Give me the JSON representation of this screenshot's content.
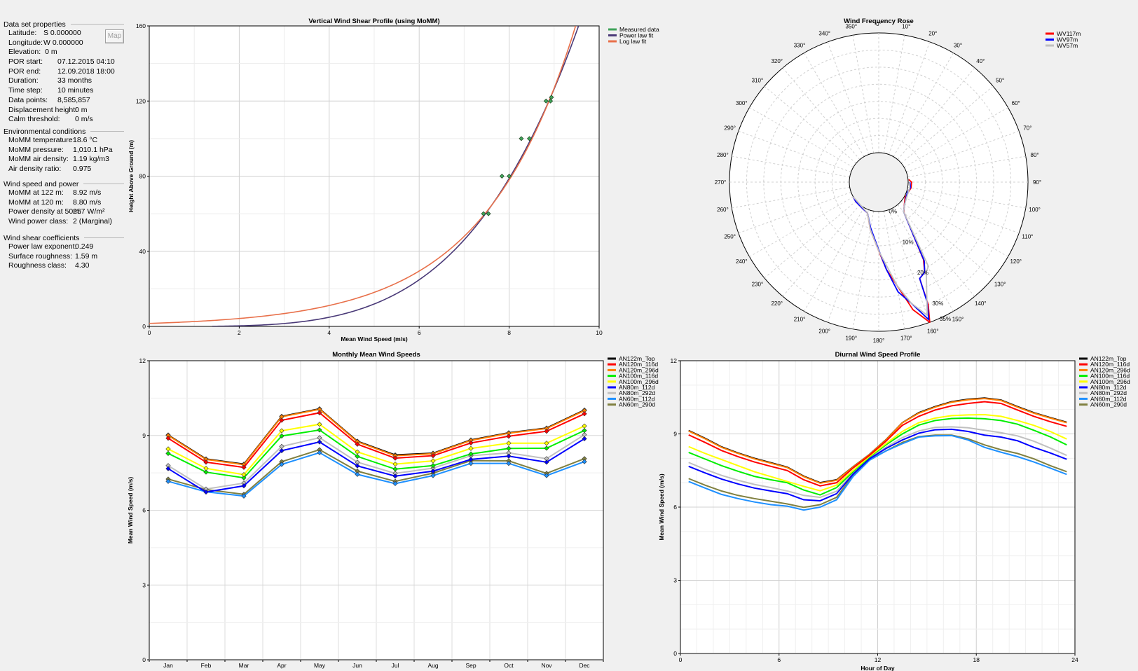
{
  "panel": {
    "map_button": "Map",
    "sections": [
      {
        "title": "Data set properties",
        "rows": [
          {
            "label": "Latitude:",
            "value": "S 0.000000"
          },
          {
            "label": "Longitude:",
            "value": "W 0.000000"
          },
          {
            "label": "Elevation:",
            "value": "0 m"
          },
          {
            "label": "POR start:",
            "value": "07.12.2015 04:10"
          },
          {
            "label": "POR end:",
            "value": "12.09.2018 18:00"
          },
          {
            "label": "Duration:",
            "value": "33 months"
          },
          {
            "label": "Time step:",
            "value": "10 minutes"
          },
          {
            "label": "Data points:",
            "value": "8,585,857"
          },
          {
            "label": "Displacement height:",
            "value": "0 m"
          },
          {
            "label": "Calm threshold:",
            "value": "0 m/s"
          }
        ]
      },
      {
        "title": "Environmental conditions",
        "rows": [
          {
            "label": "MoMM temperature:",
            "value": "18.6 °C"
          },
          {
            "label": "MoMM pressure:",
            "value": "1,010.1 hPa"
          },
          {
            "label": "MoMM air density:",
            "value": "1.19 kg/m3"
          },
          {
            "label": "Air density ratio:",
            "value": "0.975"
          }
        ]
      },
      {
        "title": "Wind speed and power",
        "rows": [
          {
            "label": "MoMM at 122 m:",
            "value": "8.92 m/s"
          },
          {
            "label": "MoMM at 120 m:",
            "value": "8.80 m/s"
          },
          {
            "label": "Power density at 50m:",
            "value": "257 W/m²"
          },
          {
            "label": "Wind power class:",
            "value": "2  (Marginal)"
          }
        ]
      },
      {
        "title": "Wind shear coefficients",
        "rows": [
          {
            "label": "Power law exponent:",
            "value": "0.249"
          },
          {
            "label": "Surface roughness:",
            "value": "1.59 m"
          },
          {
            "label": "Roughness class:",
            "value": "4.30"
          }
        ]
      }
    ]
  },
  "chart_data": [
    {
      "id": "shear",
      "type": "scatter",
      "title": "Vertical Wind Shear Profile (using MoMM)",
      "xlabel": "Mean Wind Speed (m/s)",
      "ylabel": "Height Above Ground (m)",
      "xlim": [
        0,
        10
      ],
      "ylim": [
        0,
        160
      ],
      "xticks": [
        "0",
        "2",
        "4",
        "6",
        "8",
        "10"
      ],
      "yticks": [
        "0",
        "40",
        "80",
        "120",
        "160"
      ],
      "legend_position": "top-right",
      "legend": [
        {
          "name": "Measured data",
          "color": "#3fa35a"
        },
        {
          "name": "Power law fit",
          "color": "#4a3a78"
        },
        {
          "name": "Log law fit",
          "color": "#e8704a"
        }
      ],
      "measured": [
        [
          7.43,
          60
        ],
        [
          7.54,
          60
        ],
        [
          7.84,
          80
        ],
        [
          8.0,
          80
        ],
        [
          8.27,
          100
        ],
        [
          8.45,
          100
        ],
        [
          8.82,
          120
        ],
        [
          8.92,
          120
        ],
        [
          8.94,
          122
        ]
      ],
      "power_fit": {
        "exponent": 0.249,
        "ref_height": 122,
        "ref_speed": 8.92
      },
      "log_fit": {
        "roughness": 1.59,
        "ref_height": 122,
        "ref_speed": 8.92
      }
    },
    {
      "id": "rose",
      "type": "line",
      "title": "Wind Frequency Rose",
      "radial_max": 35,
      "direction_labels": [
        "0°",
        "10°",
        "20°",
        "30°",
        "40°",
        "50°",
        "60°",
        "70°",
        "80°",
        "90°",
        "100°",
        "110°",
        "120°",
        "130°",
        "140°",
        "150°",
        "160°",
        "170°",
        "180°",
        "190°",
        "200°",
        "210°",
        "220°",
        "230°",
        "240°",
        "250°",
        "260°",
        "270°",
        "280°",
        "290°",
        "300°",
        "310°",
        "320°",
        "330°",
        "340°",
        "350°"
      ],
      "radial_labels": [
        {
          "value": 0,
          "text": "0%"
        },
        {
          "value": 10,
          "text": "10%"
        },
        {
          "value": 20,
          "text": "20%"
        },
        {
          "value": 30,
          "text": "30%"
        },
        {
          "value": 35,
          "text": "35%"
        }
      ],
      "legend_position": "top-right",
      "series": [
        {
          "name": "WV117m",
          "color": "#ff0000",
          "points": [
            [
              85,
              0.2
            ],
            [
              90,
              1
            ],
            [
              100,
              1
            ],
            [
              110,
              0.5
            ],
            [
              120,
              0.3
            ],
            [
              130,
              1.2
            ],
            [
              140,
              2.8
            ],
            [
              150,
              17.5
            ],
            [
              153,
              21
            ],
            [
              157,
              22
            ],
            [
              158,
              30
            ],
            [
              160,
              35
            ],
            [
              165,
              30
            ],
            [
              170,
              22
            ],
            [
              175,
              17
            ],
            [
              180,
              11.5
            ],
            [
              190,
              5.5
            ],
            [
              200,
              1
            ],
            [
              210,
              0.5
            ],
            [
              230,
              0.2
            ],
            [
              240,
              0
            ]
          ]
        },
        {
          "name": "WV97m",
          "color": "#0000ff",
          "points": [
            [
              90,
              0.5
            ],
            [
              100,
              0.8
            ],
            [
              110,
              0.3
            ],
            [
              130,
              1.3
            ],
            [
              140,
              2.7
            ],
            [
              150,
              18
            ],
            [
              153,
              21
            ],
            [
              157,
              22
            ],
            [
              158,
              29
            ],
            [
              160,
              34.2
            ],
            [
              165,
              28
            ],
            [
              170,
              24
            ],
            [
              175,
              17
            ],
            [
              180,
              11.2
            ],
            [
              190,
              5
            ],
            [
              200,
              1
            ],
            [
              210,
              0.5
            ],
            [
              230,
              0.2
            ],
            [
              240,
              0
            ]
          ]
        },
        {
          "name": "WV57m",
          "color": "#c0c0c0",
          "points": [
            [
              90,
              0.3
            ],
            [
              100,
              0.6
            ],
            [
              130,
              1.3
            ],
            [
              140,
              2.7
            ],
            [
              149.5,
              20
            ],
            [
              152,
              21
            ],
            [
              160,
              32.8
            ],
            [
              165,
              28
            ],
            [
              170,
              22
            ],
            [
              180,
              11.5
            ],
            [
              190,
              5.5
            ],
            [
              200,
              1
            ],
            [
              240,
              0
            ]
          ]
        }
      ]
    },
    {
      "id": "monthly",
      "type": "line",
      "title": "Monthly Mean Wind Speeds",
      "xlabel": "",
      "ylabel": "Mean Wind Speed (m/s)",
      "ylim": [
        0,
        12
      ],
      "yticks": [
        "0",
        "3",
        "6",
        "9",
        "12"
      ],
      "categories": [
        "Jan",
        "Feb",
        "Mar",
        "Apr",
        "May",
        "Jun",
        "Jul",
        "Aug",
        "Sep",
        "Oct",
        "Nov",
        "Dec"
      ],
      "legend_position": "top-right",
      "series": [
        {
          "name": "AN122m_Top",
          "color": "#000000",
          "values": [
            9.02,
            8.06,
            7.85,
            9.77,
            10.07,
            8.77,
            8.22,
            8.29,
            8.82,
            9.11,
            9.3,
            10.02
          ]
        },
        {
          "name": "AN120m_116d",
          "color": "#ff0000",
          "values": [
            8.89,
            7.93,
            7.72,
            9.61,
            9.91,
            8.65,
            8.09,
            8.19,
            8.7,
            8.97,
            9.17,
            9.87
          ]
        },
        {
          "name": "AN120m_296d",
          "color": "#ff8000",
          "values": [
            9.0,
            8.04,
            7.83,
            9.75,
            10.05,
            8.75,
            8.19,
            8.27,
            8.8,
            9.09,
            9.28,
            10.0
          ]
        },
        {
          "name": "AN100m_116d",
          "color": "#00ee00",
          "values": [
            8.28,
            7.53,
            7.3,
            8.98,
            9.22,
            8.16,
            7.65,
            7.79,
            8.26,
            8.48,
            8.49,
            9.2
          ]
        },
        {
          "name": "AN100m_296d",
          "color": "#ffff00",
          "values": [
            8.46,
            7.68,
            7.43,
            9.19,
            9.45,
            8.34,
            7.85,
            7.98,
            8.48,
            8.69,
            8.69,
            9.38
          ]
        },
        {
          "name": "AN80m_112d",
          "color": "#0000ff",
          "values": [
            7.67,
            6.73,
            6.98,
            8.39,
            8.74,
            7.78,
            7.37,
            7.57,
            8.04,
            8.17,
            7.93,
            8.87
          ]
        },
        {
          "name": "AN80m_292d",
          "color": "#c0c0c0",
          "values": [
            7.79,
            6.85,
            7.09,
            8.56,
            8.91,
            7.93,
            7.48,
            7.69,
            8.19,
            8.3,
            8.07,
            9.03
          ]
        },
        {
          "name": "AN60m_112d",
          "color": "#1e90ff",
          "values": [
            7.16,
            6.74,
            6.57,
            7.84,
            8.31,
            7.44,
            7.07,
            7.39,
            7.88,
            7.88,
            7.39,
            7.95
          ]
        },
        {
          "name": "AN60m_290d",
          "color": "#808040",
          "values": [
            7.25,
            6.83,
            6.64,
            7.95,
            8.43,
            7.57,
            7.16,
            7.49,
            7.99,
            7.98,
            7.48,
            8.07
          ]
        }
      ]
    },
    {
      "id": "diurnal",
      "type": "line",
      "title": "Diurnal Wind Speed Profile",
      "xlabel": "Hour of Day",
      "ylabel": "Mean Wind Speed (m/s)",
      "xlim": [
        0,
        24
      ],
      "ylim": [
        0,
        12
      ],
      "xticks": [
        "0",
        "6",
        "12",
        "18",
        "24"
      ],
      "yticks": [
        "0",
        "3",
        "6",
        "9",
        "12"
      ],
      "x": [
        0.5,
        1.5,
        2.5,
        3.5,
        4.5,
        5.5,
        6.5,
        7.5,
        8.5,
        9.5,
        10.5,
        11.5,
        12.5,
        13.5,
        14.5,
        15.5,
        16.5,
        17.5,
        18.5,
        19.5,
        20.5,
        21.5,
        22.5,
        23.5
      ],
      "legend_position": "top-right",
      "series": [
        {
          "name": "AN122m_Top",
          "color": "#000000",
          "values": [
            9.14,
            8.82,
            8.47,
            8.22,
            8.0,
            7.82,
            7.64,
            7.27,
            7.0,
            7.12,
            7.65,
            8.16,
            8.76,
            9.46,
            9.87,
            10.12,
            10.32,
            10.42,
            10.47,
            10.39,
            10.12,
            9.87,
            9.67,
            9.48
          ]
        },
        {
          "name": "AN120m_116d",
          "color": "#ff0000",
          "values": [
            8.96,
            8.65,
            8.32,
            8.07,
            7.85,
            7.67,
            7.5,
            7.12,
            6.87,
            7.0,
            7.6,
            8.12,
            8.7,
            9.35,
            9.72,
            9.98,
            10.15,
            10.25,
            10.32,
            10.25,
            9.98,
            9.72,
            9.5,
            9.31
          ]
        },
        {
          "name": "AN120m_296d",
          "color": "#ff8000",
          "values": [
            9.12,
            8.8,
            8.45,
            8.2,
            7.98,
            7.8,
            7.62,
            7.25,
            6.98,
            7.1,
            7.64,
            8.15,
            8.75,
            9.45,
            9.85,
            10.1,
            10.3,
            10.4,
            10.45,
            10.37,
            10.1,
            9.85,
            9.65,
            9.46
          ]
        },
        {
          "name": "AN100m_116d",
          "color": "#00ee00",
          "values": [
            8.24,
            7.97,
            7.7,
            7.47,
            7.26,
            7.12,
            7.0,
            6.7,
            6.5,
            6.8,
            7.45,
            8.05,
            8.55,
            9.0,
            9.36,
            9.55,
            9.63,
            9.65,
            9.62,
            9.55,
            9.4,
            9.15,
            8.88,
            8.55
          ]
        },
        {
          "name": "AN100m_296d",
          "color": "#ffff00",
          "values": [
            8.48,
            8.2,
            7.95,
            7.7,
            7.45,
            7.25,
            7.05,
            6.85,
            6.67,
            6.9,
            7.5,
            8.08,
            8.6,
            9.1,
            9.46,
            9.65,
            9.75,
            9.78,
            9.79,
            9.72,
            9.55,
            9.35,
            9.1,
            8.79
          ]
        },
        {
          "name": "AN80m_112d",
          "color": "#0000ff",
          "values": [
            7.67,
            7.4,
            7.15,
            6.95,
            6.78,
            6.66,
            6.55,
            6.3,
            6.26,
            6.55,
            7.35,
            7.98,
            8.4,
            8.75,
            9.03,
            9.17,
            9.19,
            9.1,
            8.95,
            8.87,
            8.72,
            8.45,
            8.22,
            7.96
          ]
        },
        {
          "name": "AN80m_292d",
          "color": "#c0c0c0",
          "values": [
            7.83,
            7.55,
            7.3,
            7.1,
            6.93,
            6.8,
            6.66,
            6.48,
            6.4,
            6.65,
            7.4,
            8.0,
            8.45,
            8.85,
            9.12,
            9.27,
            9.29,
            9.25,
            9.15,
            9.05,
            8.92,
            8.7,
            8.42,
            8.12
          ]
        },
        {
          "name": "AN60m_112d",
          "color": "#1e90ff",
          "values": [
            7.05,
            6.78,
            6.52,
            6.35,
            6.21,
            6.1,
            6.04,
            5.88,
            6.0,
            6.3,
            7.25,
            7.92,
            8.3,
            8.6,
            8.87,
            8.92,
            8.93,
            8.75,
            8.45,
            8.25,
            8.07,
            7.85,
            7.6,
            7.34
          ]
        },
        {
          "name": "AN60m_290d",
          "color": "#808040",
          "values": [
            7.17,
            6.9,
            6.66,
            6.48,
            6.35,
            6.24,
            6.13,
            5.99,
            6.1,
            6.4,
            7.3,
            7.95,
            8.3,
            8.65,
            8.89,
            8.95,
            8.95,
            8.8,
            8.55,
            8.35,
            8.2,
            7.98,
            7.7,
            7.45
          ]
        }
      ]
    }
  ]
}
